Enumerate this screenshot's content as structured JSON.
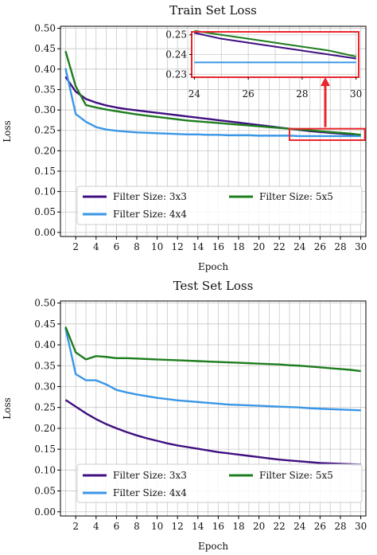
{
  "chart_data": [
    {
      "type": "line",
      "title": "Train Set Loss",
      "xlabel": "Epoch",
      "ylabel": "Loss",
      "xlim": [
        0.5,
        30.5
      ],
      "ylim": [
        -0.01,
        0.505
      ],
      "x_ticks": [
        2,
        4,
        6,
        8,
        10,
        12,
        14,
        16,
        18,
        20,
        22,
        24,
        26,
        28,
        30
      ],
      "x_tick_labels": [
        "2",
        "4",
        "6",
        "8",
        "10",
        "12",
        "14",
        "16",
        "18",
        "20",
        "22",
        "24",
        "26",
        "28",
        "30"
      ],
      "x_minor_grid": [
        1,
        3,
        5,
        7,
        9,
        11,
        13,
        15,
        17,
        19,
        21,
        23,
        25,
        27,
        29
      ],
      "y_ticks": [
        0.0,
        0.05,
        0.1,
        0.15,
        0.2,
        0.25,
        0.3,
        0.35,
        0.4,
        0.45,
        0.5
      ],
      "y_tick_labels": [
        "0.00",
        "0.05",
        "0.10",
        "0.15",
        "0.20",
        "0.25",
        "0.30",
        "0.35",
        "0.40",
        "0.45",
        "0.50"
      ],
      "grid": true,
      "legend_position": "lower-center",
      "x": [
        1,
        2,
        3,
        4,
        5,
        6,
        7,
        8,
        9,
        10,
        11,
        12,
        13,
        14,
        15,
        16,
        17,
        18,
        19,
        20,
        21,
        22,
        23,
        24,
        25,
        26,
        27,
        28,
        29,
        30
      ],
      "series": [
        {
          "name": "Filter Size: 3x3",
          "color": "#3f0f80",
          "values": [
            0.381,
            0.345,
            0.327,
            0.318,
            0.311,
            0.306,
            0.302,
            0.299,
            0.296,
            0.293,
            0.29,
            0.287,
            0.284,
            0.281,
            0.278,
            0.275,
            0.272,
            0.269,
            0.266,
            0.263,
            0.26,
            0.257,
            0.254,
            0.251,
            0.248,
            0.246,
            0.244,
            0.242,
            0.24,
            0.238
          ]
        },
        {
          "name": "Filter Size: 4x4",
          "color": "#3a96e6",
          "values": [
            0.402,
            0.29,
            0.271,
            0.258,
            0.252,
            0.249,
            0.247,
            0.245,
            0.244,
            0.243,
            0.242,
            0.241,
            0.24,
            0.24,
            0.239,
            0.239,
            0.238,
            0.238,
            0.238,
            0.237,
            0.237,
            0.237,
            0.237,
            0.236,
            0.236,
            0.236,
            0.236,
            0.236,
            0.236,
            0.236
          ]
        },
        {
          "name": "Filter Size: 5x5",
          "color": "#1e7d1e",
          "values": [
            0.444,
            0.358,
            0.312,
            0.306,
            0.301,
            0.297,
            0.293,
            0.289,
            0.286,
            0.283,
            0.28,
            0.277,
            0.274,
            0.272,
            0.27,
            0.268,
            0.266,
            0.264,
            0.262,
            0.26,
            0.258,
            0.256,
            0.254,
            0.252,
            0.25,
            0.248,
            0.246,
            0.244,
            0.242,
            0.239
          ]
        }
      ],
      "inset": {
        "xlim": [
          23.9,
          30.1
        ],
        "ylim": [
          0.2285,
          0.2515
        ],
        "x_ticks": [
          24,
          26,
          28,
          30
        ],
        "x_tick_labels": [
          "24",
          "26",
          "28",
          "30"
        ],
        "y_ticks": [
          0.23,
          0.24,
          0.25
        ],
        "y_tick_labels": [
          "0.23",
          "0.24",
          "0.25"
        ],
        "highlight_color": "#e8262b",
        "zoom_region": {
          "x": [
            23,
            30.4
          ],
          "y": [
            0.226,
            0.254
          ]
        }
      }
    },
    {
      "type": "line",
      "title": "Test Set Loss",
      "xlabel": "Epoch",
      "ylabel": "Loss",
      "xlim": [
        0.5,
        30.5
      ],
      "ylim": [
        -0.01,
        0.505
      ],
      "x_ticks": [
        2,
        4,
        6,
        8,
        10,
        12,
        14,
        16,
        18,
        20,
        22,
        24,
        26,
        28,
        30
      ],
      "x_tick_labels": [
        "2",
        "4",
        "6",
        "8",
        "10",
        "12",
        "14",
        "16",
        "18",
        "20",
        "22",
        "24",
        "26",
        "28",
        "30"
      ],
      "x_minor_grid": [
        1,
        3,
        5,
        7,
        9,
        11,
        13,
        15,
        17,
        19,
        21,
        23,
        25,
        27,
        29
      ],
      "y_ticks": [
        0.0,
        0.05,
        0.1,
        0.15,
        0.2,
        0.25,
        0.3,
        0.35,
        0.4,
        0.45,
        0.5
      ],
      "y_tick_labels": [
        "0.00",
        "0.05",
        "0.10",
        "0.15",
        "0.20",
        "0.25",
        "0.30",
        "0.35",
        "0.40",
        "0.45",
        "0.50"
      ],
      "grid": true,
      "legend_position": "lower-center",
      "x": [
        1,
        2,
        3,
        4,
        5,
        6,
        7,
        8,
        9,
        10,
        11,
        12,
        13,
        14,
        15,
        16,
        17,
        18,
        19,
        20,
        21,
        22,
        23,
        24,
        25,
        26,
        27,
        28,
        29,
        30
      ],
      "series": [
        {
          "name": "Filter Size: 3x3",
          "color": "#3f0f80",
          "values": [
            0.268,
            0.252,
            0.236,
            0.222,
            0.21,
            0.2,
            0.191,
            0.183,
            0.176,
            0.17,
            0.164,
            0.159,
            0.155,
            0.151,
            0.147,
            0.143,
            0.14,
            0.137,
            0.134,
            0.131,
            0.128,
            0.125,
            0.123,
            0.121,
            0.119,
            0.117,
            0.116,
            0.115,
            0.114,
            0.113
          ]
        },
        {
          "name": "Filter Size: 4x4",
          "color": "#3a96e6",
          "values": [
            0.44,
            0.33,
            0.315,
            0.315,
            0.305,
            0.292,
            0.286,
            0.281,
            0.277,
            0.273,
            0.27,
            0.267,
            0.265,
            0.263,
            0.261,
            0.259,
            0.257,
            0.256,
            0.255,
            0.254,
            0.253,
            0.252,
            0.251,
            0.25,
            0.248,
            0.247,
            0.246,
            0.245,
            0.244,
            0.243
          ]
        },
        {
          "name": "Filter Size: 5x5",
          "color": "#1e7d1e",
          "values": [
            0.443,
            0.382,
            0.365,
            0.373,
            0.371,
            0.368,
            0.368,
            0.367,
            0.366,
            0.365,
            0.364,
            0.363,
            0.362,
            0.361,
            0.36,
            0.359,
            0.358,
            0.357,
            0.356,
            0.355,
            0.354,
            0.353,
            0.351,
            0.35,
            0.348,
            0.346,
            0.344,
            0.342,
            0.34,
            0.337
          ]
        }
      ]
    }
  ]
}
